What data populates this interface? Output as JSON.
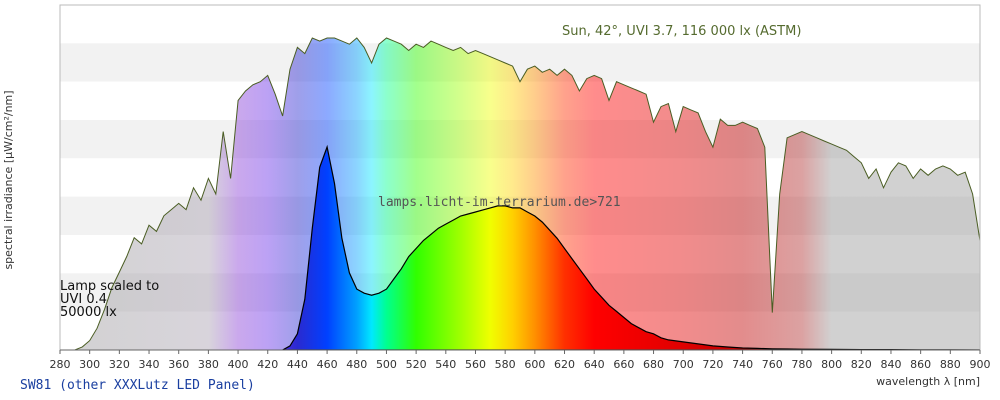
{
  "chart_data": {
    "type": "area",
    "ylabel": "spectral irradiance [µW/cm²/nm]",
    "xlabel": "wavelength λ [nm]",
    "xlim": [
      280,
      900
    ],
    "x_ticks": [
      280,
      300,
      320,
      340,
      360,
      380,
      400,
      420,
      440,
      460,
      480,
      500,
      520,
      540,
      560,
      580,
      600,
      620,
      640,
      660,
      680,
      700,
      720,
      740,
      760,
      780,
      800,
      820,
      840,
      860,
      880,
      900
    ],
    "y_ticks_shown": false,
    "grid": "horizontal bands",
    "annotations": {
      "sun": "Sun, 42°, UVI 3.7, 116 000 lx (ASTM)",
      "watermark": "lamps.licht-im-terrarium.de>721",
      "lamp_line1": "Lamp scaled to",
      "lamp_line2": "UVI 0.4",
      "lamp_line3": "50000 lx"
    },
    "footer": "SW81 (other XXXLutz LED Panel)",
    "series": [
      {
        "role": "sun reference spectrum (relative)",
        "x": [
          290,
          295,
          300,
          305,
          310,
          315,
          320,
          325,
          330,
          335,
          340,
          345,
          350,
          355,
          360,
          365,
          370,
          375,
          380,
          385,
          390,
          395,
          400,
          405,
          410,
          415,
          420,
          425,
          430,
          435,
          440,
          445,
          450,
          455,
          460,
          465,
          470,
          475,
          480,
          485,
          490,
          495,
          500,
          505,
          510,
          515,
          520,
          525,
          530,
          535,
          540,
          545,
          550,
          555,
          560,
          565,
          570,
          575,
          580,
          585,
          590,
          595,
          600,
          605,
          610,
          615,
          620,
          625,
          630,
          635,
          640,
          645,
          650,
          655,
          660,
          665,
          670,
          675,
          680,
          685,
          690,
          695,
          700,
          705,
          710,
          715,
          720,
          725,
          730,
          735,
          740,
          745,
          750,
          755,
          760,
          765,
          770,
          775,
          780,
          785,
          790,
          795,
          800,
          805,
          810,
          815,
          820,
          825,
          830,
          835,
          840,
          845,
          850,
          855,
          860,
          865,
          870,
          875,
          880,
          885,
          890,
          895,
          900
        ],
        "values": [
          0,
          0.01,
          0.03,
          0.07,
          0.13,
          0.2,
          0.25,
          0.3,
          0.36,
          0.34,
          0.4,
          0.38,
          0.43,
          0.45,
          0.47,
          0.45,
          0.52,
          0.48,
          0.55,
          0.5,
          0.7,
          0.55,
          0.8,
          0.83,
          0.85,
          0.86,
          0.88,
          0.82,
          0.75,
          0.9,
          0.97,
          0.95,
          1.0,
          0.99,
          1.0,
          1.0,
          0.99,
          0.98,
          1.0,
          0.97,
          0.92,
          0.98,
          1.0,
          0.99,
          0.98,
          0.96,
          0.98,
          0.97,
          0.99,
          0.98,
          0.97,
          0.96,
          0.97,
          0.95,
          0.96,
          0.95,
          0.94,
          0.93,
          0.92,
          0.91,
          0.86,
          0.9,
          0.91,
          0.89,
          0.9,
          0.88,
          0.9,
          0.88,
          0.83,
          0.87,
          0.88,
          0.87,
          0.8,
          0.86,
          0.85,
          0.84,
          0.83,
          0.82,
          0.73,
          0.78,
          0.79,
          0.7,
          0.78,
          0.77,
          0.76,
          0.7,
          0.65,
          0.74,
          0.72,
          0.72,
          0.73,
          0.72,
          0.71,
          0.65,
          0.12,
          0.5,
          0.68,
          0.69,
          0.7,
          0.69,
          0.68,
          0.67,
          0.66,
          0.65,
          0.64,
          0.62,
          0.6,
          0.55,
          0.58,
          0.52,
          0.57,
          0.6,
          0.59,
          0.55,
          0.58,
          0.56,
          0.58,
          0.59,
          0.58,
          0.56,
          0.57,
          0.5,
          0.35
        ]
      },
      {
        "role": "lamp spectrum (SW81, scaled)",
        "x": [
          430,
          435,
          440,
          445,
          450,
          455,
          460,
          465,
          470,
          475,
          480,
          485,
          490,
          495,
          500,
          505,
          510,
          515,
          520,
          525,
          530,
          535,
          540,
          545,
          550,
          555,
          560,
          565,
          570,
          575,
          580,
          585,
          590,
          595,
          600,
          605,
          610,
          615,
          620,
          625,
          630,
          635,
          640,
          645,
          650,
          655,
          660,
          665,
          670,
          675,
          680,
          685,
          690,
          695,
          700,
          705,
          710,
          715,
          720,
          730,
          740,
          750,
          760,
          770,
          780,
          800,
          820,
          840,
          860,
          880,
          900
        ],
        "values": [
          0,
          0.02,
          0.08,
          0.25,
          0.6,
          0.9,
          1.0,
          0.82,
          0.55,
          0.38,
          0.3,
          0.28,
          0.27,
          0.28,
          0.3,
          0.35,
          0.4,
          0.46,
          0.5,
          0.54,
          0.57,
          0.6,
          0.62,
          0.64,
          0.66,
          0.67,
          0.68,
          0.69,
          0.7,
          0.71,
          0.71,
          0.7,
          0.7,
          0.68,
          0.66,
          0.63,
          0.59,
          0.55,
          0.5,
          0.45,
          0.4,
          0.35,
          0.3,
          0.26,
          0.22,
          0.19,
          0.16,
          0.13,
          0.11,
          0.09,
          0.08,
          0.06,
          0.05,
          0.045,
          0.04,
          0.035,
          0.03,
          0.025,
          0.02,
          0.015,
          0.01,
          0.008,
          0.006,
          0.005,
          0.004,
          0.003,
          0.002,
          0.002,
          0.001,
          0.001,
          0
        ]
      }
    ],
    "colors": {
      "sun_outline": "#4a5d23",
      "lamp_outline": "#000000",
      "band_a": "#f2f2f2",
      "band_b": "#ffffff",
      "axis": "#888888"
    }
  }
}
